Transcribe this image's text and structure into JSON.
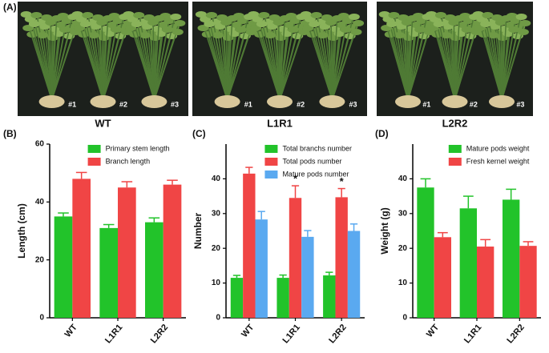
{
  "panel_a": {
    "label": "(A)",
    "photos": [
      {
        "title": "WT",
        "plants": [
          "#1",
          "#2",
          "#3"
        ]
      },
      {
        "title": "L1R1",
        "plants": [
          "#1",
          "#2",
          "#3"
        ]
      },
      {
        "title": "L2R2",
        "plants": [
          "#1",
          "#2",
          "#3"
        ]
      }
    ]
  },
  "chart_data": [
    {
      "type": "bar",
      "label": "(B)",
      "ylabel": "Length (cm)",
      "categories": [
        "WT",
        "L1R1",
        "L2R2"
      ],
      "ylim": [
        0,
        60
      ],
      "yticks": [
        0,
        20,
        40,
        60
      ],
      "legend": "upper right",
      "series": [
        {
          "name": "Primary stem length",
          "color": "#22c32a",
          "values": [
            35,
            31,
            33
          ],
          "errors": [
            1.2,
            1.2,
            1.5
          ]
        },
        {
          "name": "Branch length",
          "color": "#f04545",
          "values": [
            48,
            45,
            46
          ],
          "errors": [
            2.2,
            2,
            1.5
          ]
        }
      ]
    },
    {
      "type": "bar",
      "label": "(C)",
      "ylabel": "Number",
      "categories": [
        "WT",
        "L1R1",
        "L2R2"
      ],
      "ylim": [
        0,
        50
      ],
      "yticks": [
        0,
        10,
        20,
        30,
        40
      ],
      "legend": "upper right",
      "series": [
        {
          "name": "Total branchs number",
          "color": "#22c32a",
          "values": [
            11.5,
            11.5,
            12.2
          ],
          "errors": [
            0.7,
            0.8,
            0.9
          ]
        },
        {
          "name": "Total pods number",
          "color": "#f04545",
          "values": [
            41.5,
            34.5,
            34.7
          ],
          "errors": [
            1.8,
            3.5,
            2.5
          ]
        },
        {
          "name": "Mature pods number",
          "color": "#5aa9f0",
          "values": [
            28.3,
            23.3,
            25
          ],
          "errors": [
            2.3,
            1.8,
            2
          ]
        }
      ],
      "annotations": [
        {
          "text": "*",
          "category": 1,
          "series": 1
        },
        {
          "text": "*",
          "category": 2,
          "series": 1
        }
      ]
    },
    {
      "type": "bar",
      "label": "(D)",
      "ylabel": "Weight (g)",
      "categories": [
        "WT",
        "L1R1",
        "L2R2"
      ],
      "ylim": [
        0,
        50
      ],
      "yticks": [
        0,
        10,
        20,
        30,
        40
      ],
      "legend": "upper right",
      "series": [
        {
          "name": "Mature pods weight",
          "color": "#22c32a",
          "values": [
            37.5,
            31.5,
            34
          ],
          "errors": [
            2.5,
            3.5,
            3
          ]
        },
        {
          "name": "Fresh kernel weight",
          "color": "#f04545",
          "values": [
            23.2,
            20.5,
            20.7
          ],
          "errors": [
            1.3,
            2,
            1.2
          ]
        }
      ]
    }
  ]
}
